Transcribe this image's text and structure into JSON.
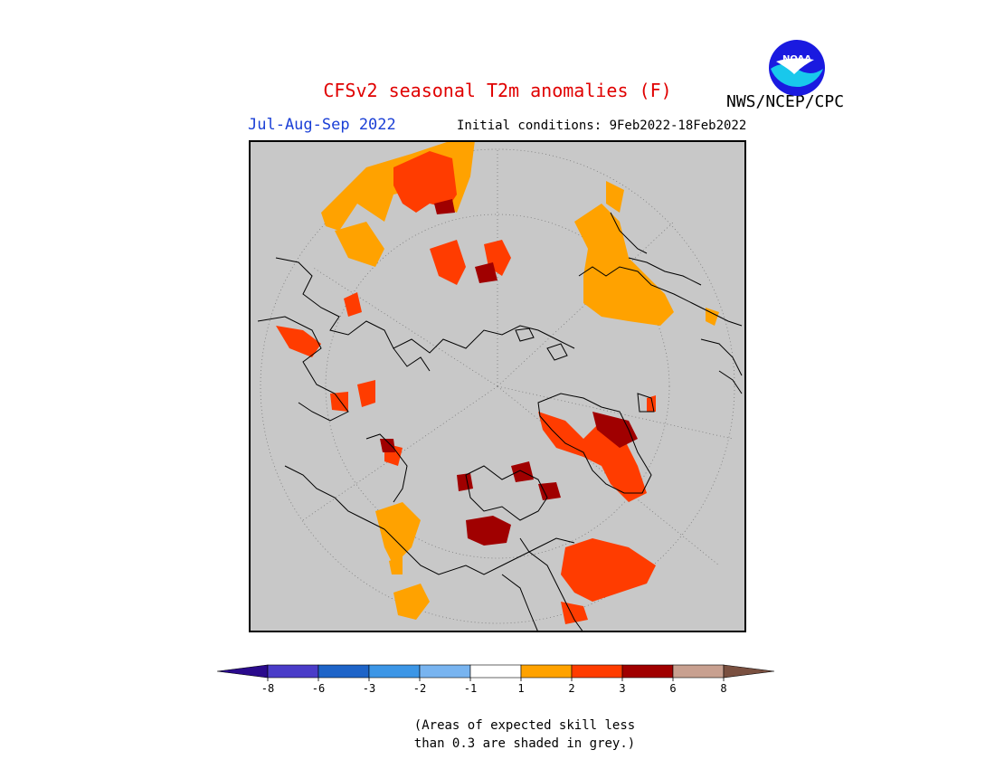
{
  "title": "CFSv2 seasonal T2m anomalies (F)",
  "organization": "NWS/NCEP/CPC",
  "logo_text": "NOAA",
  "period": "Jul-Aug-Sep 2022",
  "initial_conditions": "Initial conditions: 9Feb2022-18Feb2022",
  "colors": {
    "skill_grey": "#c8c8c8",
    "coast": "#000000",
    "anom_1_2": "#ffa200",
    "anom_2_3": "#ff3c00",
    "anom_3_6": "#a00000",
    "anom_6_8": "#c8a090"
  },
  "legend": {
    "colors": [
      "#2a0a8c",
      "#4a3cc8",
      "#1e64c8",
      "#3c96e6",
      "#78b4f0",
      "#ffffff",
      "#ffa200",
      "#ff3c00",
      "#a00000",
      "#c8a090",
      "#7a5040"
    ],
    "ticks": [
      "-8",
      "-6",
      "-3",
      "-2",
      "-1",
      "1",
      "2",
      "3",
      "6",
      "8"
    ]
  },
  "note_lines": [
    "(Areas of expected skill less",
    "than 0.3 are shaded in grey.)"
  ]
}
